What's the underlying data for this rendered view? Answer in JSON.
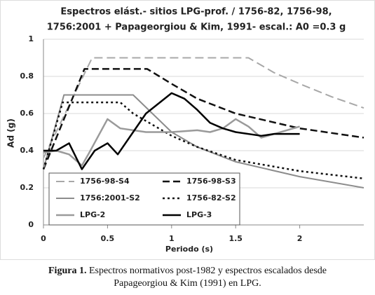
{
  "chart_data": {
    "type": "line",
    "title": [
      "Espectros elást.- sitios LPG-prof. / 1756-82, 1756-98,",
      "1756:2001 + Papageorgiou & Kim, 1991- escal.: A0 =0.3 g"
    ],
    "x_label": "Periodo (s)",
    "y_label": "Ad (g)",
    "xlim": [
      0,
      2.5
    ],
    "xticks": [
      0,
      0.5,
      1,
      1.5,
      2
    ],
    "ylim": [
      0,
      1
    ],
    "yticks": [
      0,
      0.2,
      0.4,
      0.6,
      0.8,
      1
    ],
    "grid": true,
    "series": [
      {
        "name": "1756-98-S4",
        "color": "#a8a8a8",
        "style": "long-dash",
        "x": [
          0,
          0.38,
          1.6,
          1.8,
          2,
          2.25,
          2.5
        ],
        "values": [
          0.36,
          0.9,
          0.9,
          0.82,
          0.76,
          0.69,
          0.63
        ]
      },
      {
        "name": "1756-98-S3",
        "color": "#111111",
        "style": "dashed",
        "x": [
          0,
          0.32,
          0.81,
          1,
          1.2,
          1.5,
          2,
          2.5
        ],
        "values": [
          0.3,
          0.84,
          0.84,
          0.76,
          0.68,
          0.6,
          0.52,
          0.47
        ]
      },
      {
        "name": "1756:2001-S2",
        "color": "#8c8c8c",
        "style": "solid",
        "x": [
          0,
          0.16,
          0.7,
          1,
          1.2,
          1.5,
          2,
          2.5
        ],
        "values": [
          0.3,
          0.7,
          0.7,
          0.5,
          0.42,
          0.34,
          0.26,
          0.2
        ]
      },
      {
        "name": "1756-82-S2",
        "color": "#111111",
        "style": "dotted",
        "x": [
          0,
          0.15,
          0.6,
          0.7,
          1,
          1.2,
          1.5,
          2,
          2.5
        ],
        "values": [
          0.3,
          0.66,
          0.66,
          0.6,
          0.48,
          0.42,
          0.35,
          0.29,
          0.25
        ]
      },
      {
        "name": "LPG-2",
        "color": "#9a9a9a",
        "style": "thick",
        "x": [
          0,
          0.1,
          0.2,
          0.3,
          0.35,
          0.5,
          0.6,
          0.8,
          1,
          1.2,
          1.3,
          1.4,
          1.5,
          1.6,
          1.7,
          1.8,
          2
        ],
        "values": [
          0.39,
          0.4,
          0.38,
          0.32,
          0.38,
          0.57,
          0.52,
          0.5,
          0.5,
          0.51,
          0.5,
          0.52,
          0.57,
          0.53,
          0.47,
          0.49,
          0.53
        ]
      },
      {
        "name": "LPG-3",
        "color": "#000000",
        "style": "thick",
        "x": [
          0,
          0.1,
          0.2,
          0.3,
          0.4,
          0.5,
          0.58,
          0.7,
          0.8,
          1,
          1.1,
          1.2,
          1.3,
          1.4,
          1.5,
          1.7,
          1.8,
          2
        ],
        "values": [
          0.4,
          0.4,
          0.44,
          0.3,
          0.4,
          0.44,
          0.38,
          0.5,
          0.6,
          0.71,
          0.68,
          0.62,
          0.55,
          0.52,
          0.5,
          0.48,
          0.49,
          0.49
        ]
      }
    ]
  },
  "caption": {
    "label": "Figura 1.",
    "text": "Espectros normativos post-1982 y espectros escalados desde Papageorgiou & Kim (1991) en LPG."
  }
}
